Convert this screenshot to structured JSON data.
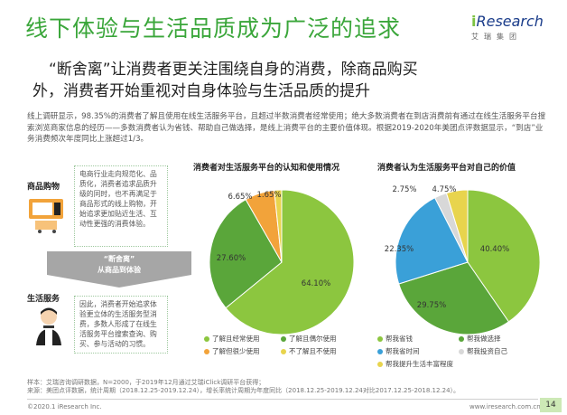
{
  "title": "线下体验与生活品质成为广泛的追求",
  "logo": {
    "i": "i",
    "word": "Research",
    "sub": "艾瑞集团"
  },
  "subtitle_line1": "“断舍离”让消费者更关注围绕自身的消费，除商品购买",
  "subtitle_line2": "外，消费者开始重视对自身体验与生活品质的提升",
  "body_text": "线上调研显示，98.35%的消费者了解且使用在线生活服务平台，且超过半数消费者经常使用；绝大多数消费者在到店消费前有通过在线生活服务平台搜索浏览商家信息的经历——多数消费者认为省钱、帮助自己做选择，是线上消费平台的主要价值体现。根据2019-2020年美团点评数据显示，“到店”业务消费频次年度同比上涨超过1/3。",
  "left": {
    "cat1": "商品购物",
    "box1": "电商行业走向规范化、品质化，消费者追求品质升级的同时，也不再满足于商品形式的线上购物，开始追求更加贴近生活、互动性更强的消费体验。",
    "arrow_line1": "“断舍离”",
    "arrow_line2": "从商品到体验",
    "cat2": "生活服务",
    "box2": "因此，消费者开始追求体验更立体的生活服务型消费，多数人形成了在线生活服务平台搜索查询、购买、参与活动的习惯。"
  },
  "chart1_title": "消费者对生活服务平台的认知和使用情况",
  "chart2_title": "消费者认为生活服务平台对自己的价值",
  "chart_data": [
    {
      "type": "pie",
      "title": "消费者对生活服务平台的认知和使用情况",
      "labels": [
        "了解且经常使用",
        "了解且偶尔使用",
        "了解但很少使用",
        "不了解且不使用"
      ],
      "values": [
        64.1,
        27.6,
        6.65,
        1.65
      ],
      "value_labels": [
        "64.10%",
        "27.60%",
        "6.65%",
        "1.65%"
      ],
      "colors": [
        "#8cc63f",
        "#5aa63a",
        "#f2a33a",
        "#e8d44d"
      ],
      "legend": "bottom"
    },
    {
      "type": "pie",
      "title": "消费者认为生活服务平台对自己的价值",
      "labels": [
        "帮我省钱",
        "帮我做选择",
        "帮我省时间",
        "帮我投资自己",
        "帮我提升生活丰富程度"
      ],
      "values": [
        40.4,
        29.75,
        22.35,
        2.75,
        4.75
      ],
      "value_labels": [
        "40.40%",
        "29.75%",
        "22.35%",
        "2.75%",
        "4.75%"
      ],
      "colors": [
        "#8cc63f",
        "#5aa63a",
        "#3aa0d8",
        "#d8d8d8",
        "#e8d44d"
      ],
      "legend": "bottom"
    }
  ],
  "notes": {
    "line1": "样本：艾瑞咨询调研数据，N=2000，于2019年12月通过艾瑞iClick调研平台获得；",
    "line2": "来源：美团点评数据，统计周期（2018.12.25-2019.12.24），增长率统计周期为年度同比（2018.12.25-2019.12.24对比2017.12.25-2018.12.24）。"
  },
  "footer": {
    "copyright": "©2020.1 iResearch Inc.",
    "website": "www.iresearch.com.cn",
    "page": "14"
  }
}
